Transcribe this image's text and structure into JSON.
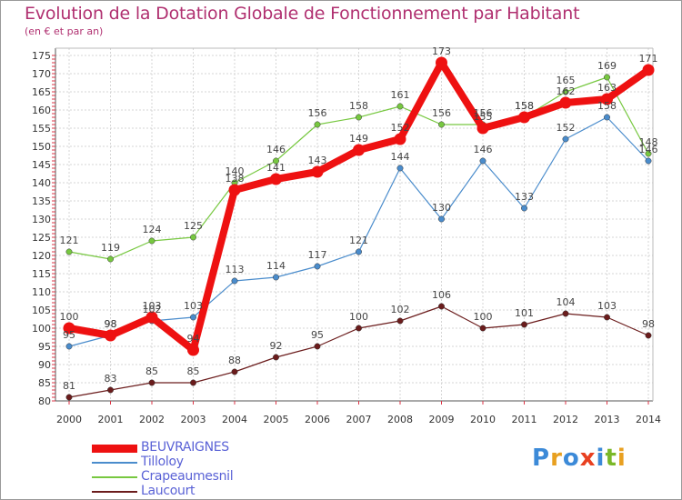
{
  "title": "Evolution de la Dotation Globale de Fonctionnement par Habitant",
  "subtitle": "(en € et par an)",
  "logo": {
    "letters": [
      "P",
      "r",
      "o",
      "x",
      "i",
      "t",
      "i"
    ],
    "colors": [
      "#3c8ad8",
      "#e8a020",
      "#3c8ad8",
      "#e84020",
      "#3c8ad8",
      "#7ab828",
      "#e8a020"
    ]
  },
  "chart_data": {
    "type": "line",
    "x": [
      "2000",
      "2001",
      "2002",
      "2003",
      "2004",
      "2005",
      "2006",
      "2007",
      "2008",
      "2009",
      "2010",
      "2011",
      "2012",
      "2013",
      "2014"
    ],
    "ylim": [
      80,
      175
    ],
    "yticks": [
      "80",
      "85",
      "90",
      "95",
      "100",
      "105",
      "110",
      "115",
      "120",
      "125",
      "130",
      "135",
      "140",
      "145",
      "150",
      "155",
      "160",
      "165",
      "170",
      "175"
    ],
    "grid": true,
    "legend_position": "bottom-left",
    "series": [
      {
        "name": "BEUVRAIGNES",
        "color": "#ee1111",
        "values": [
          100,
          98,
          103,
          94,
          138,
          141,
          143,
          149,
          152,
          173,
          155,
          158,
          162,
          163,
          171
        ],
        "labels": [
          "100",
          "98",
          "103",
          "94",
          "138",
          "141",
          "143",
          "149",
          "152",
          "173",
          "155",
          "158",
          "162",
          "163",
          "171"
        ]
      },
      {
        "name": "Tilloloy",
        "color": "#4a8ccc",
        "values": [
          95,
          98,
          102,
          103,
          113,
          114,
          117,
          121,
          144,
          130,
          146,
          133,
          152,
          158,
          146
        ],
        "labels": [
          "95",
          "98",
          "102",
          "103",
          "113",
          "114",
          "117",
          "121",
          "144",
          "130",
          "146",
          "133",
          "152",
          "158",
          "146"
        ]
      },
      {
        "name": "Crapeaumesnil",
        "color": "#77c840",
        "values": [
          121,
          119,
          124,
          125,
          140,
          146,
          156,
          158,
          161,
          156,
          156,
          158,
          165,
          169,
          148
        ],
        "labels": [
          "121",
          "119",
          "124",
          "125",
          "140",
          "146",
          "156",
          "158",
          "161",
          "156",
          "156",
          "158",
          "165",
          "169",
          "148"
        ]
      },
      {
        "name": "Laucourt",
        "color": "#6b1c1c",
        "values": [
          81,
          83,
          85,
          85,
          88,
          92,
          95,
          100,
          102,
          106,
          100,
          101,
          104,
          103,
          98
        ],
        "labels": [
          "81",
          "83",
          "85",
          "85",
          "88",
          "92",
          "95",
          "100",
          "102",
          "106",
          "100",
          "101",
          "104",
          "103",
          "98"
        ]
      }
    ]
  }
}
